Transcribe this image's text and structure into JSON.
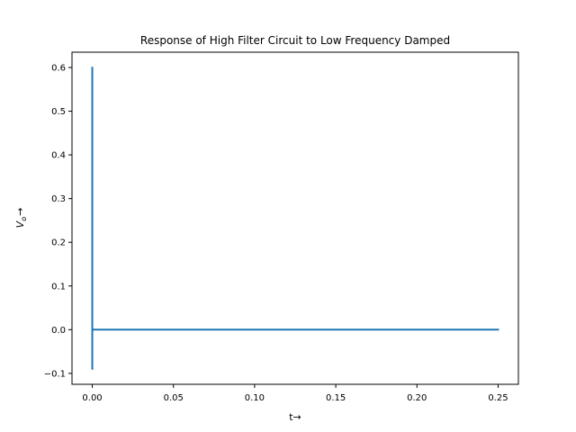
{
  "chart_data": {
    "type": "line",
    "title": "Response of High Filter Circuit to Low Frequency Damped",
    "xlabel": "t→",
    "ylabel": "Vₒ→",
    "ylabel_main": "V",
    "ylabel_sub": "o",
    "ylabel_arrow": "→",
    "xlim": [
      -0.0125,
      0.2625
    ],
    "ylim": [
      -0.125,
      0.635
    ],
    "xticks": [
      0.0,
      0.05,
      0.1,
      0.15,
      0.2,
      0.25
    ],
    "xtick_labels": [
      "0.00",
      "0.05",
      "0.10",
      "0.15",
      "0.20",
      "0.25"
    ],
    "yticks": [
      -0.1,
      0.0,
      0.1,
      0.2,
      0.3,
      0.4,
      0.5,
      0.6
    ],
    "ytick_labels": [
      "−0.1",
      "0.0",
      "0.1",
      "0.2",
      "0.3",
      "0.4",
      "0.5",
      "0.6"
    ],
    "grid": false,
    "legend": "none",
    "series": [
      {
        "color": "#1f77b4",
        "x": [
          0.0,
          0.0,
          0.0,
          0.0,
          0.0005,
          0.25
        ],
        "y": [
          0.0,
          0.6,
          -0.09,
          0.0,
          0.0,
          0.0
        ]
      }
    ]
  }
}
